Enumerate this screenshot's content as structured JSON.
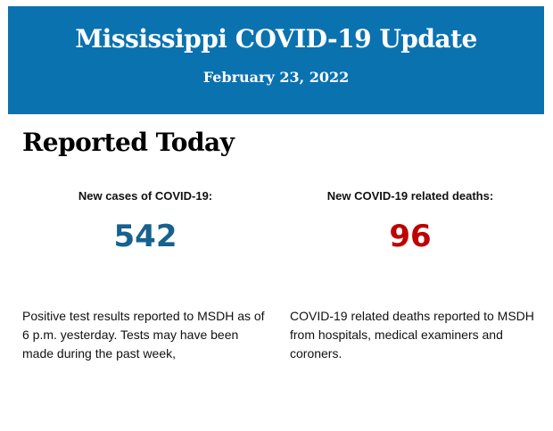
{
  "header": {
    "title": "Mississippi COVID-19 Update",
    "date": "February 23, 2022",
    "background_color": "#0b72b0"
  },
  "section_title": "Reported Today",
  "cases": {
    "label": "New cases of COVID-19:",
    "value": "542",
    "color": "#17618f",
    "description": "Positive test results reported to MSDH as of 6 p.m. yesterday. Tests may have been made during the past week,"
  },
  "deaths": {
    "label": "New COVID-19 related deaths:",
    "value": "96",
    "color": "#c00000",
    "description": "COVID-19 related deaths reported to MSDH from hospitals, medical examiners and coroners."
  }
}
